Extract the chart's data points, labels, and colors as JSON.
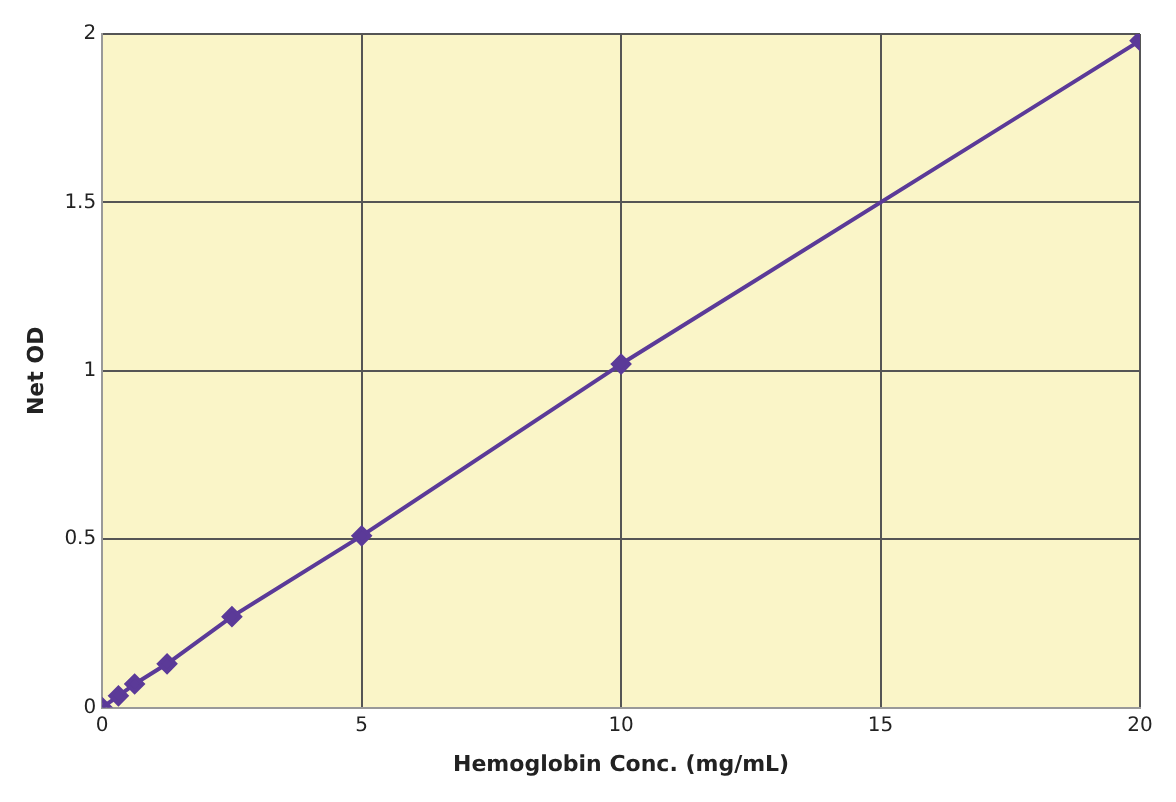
{
  "chart_data": {
    "type": "line",
    "xlabel": "Hemoglobin Conc. (mg/mL)",
    "ylabel": "Net OD",
    "x": [
      0,
      0.3125,
      0.625,
      1.25,
      2.5,
      5,
      10,
      20
    ],
    "series": [
      {
        "color": "#5b3a98",
        "values": [
          0,
          0.035,
          0.07,
          0.13,
          0.27,
          0.51,
          1.02,
          1.98
        ]
      }
    ],
    "xlim": [
      0,
      20
    ],
    "xticks": [
      0,
      5,
      10,
      15,
      20
    ],
    "ylim": [
      0,
      2
    ],
    "yticks": [
      0,
      0.5,
      1,
      1.5,
      2
    ],
    "grid": true,
    "legend": false,
    "marker": "diamond",
    "line_style": "solid"
  }
}
